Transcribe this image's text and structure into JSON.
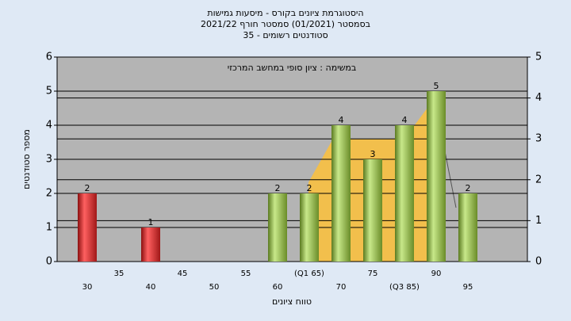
{
  "chart_data": {
    "type": "bar",
    "title": [
      "היסטוגרמת ציונים בקורס - מיסעות גמישות",
      "בסמסטר  (01/2021)  סמסטר חורף 2021/22",
      "סטודנטים רשומים - 35"
    ],
    "annotation": "במשימה : ציון סופי במחשב המרכזי",
    "ylabel": "מספר סטודנטים",
    "xlabel": "טווח ציונים",
    "categories": [
      "30",
      "35",
      "40",
      "45",
      "50",
      "55",
      "60",
      "(Q1 65)",
      "70",
      "75",
      "(Q3 85)",
      "90",
      "95"
    ],
    "values": [
      2,
      null,
      1,
      null,
      null,
      null,
      2,
      2,
      4,
      3,
      4,
      5,
      2
    ],
    "colors": [
      "#d42020",
      "#d42020",
      "#d42020",
      "#d42020",
      "#d42020",
      "#d42020",
      "#8cb43c",
      "#8cb43c",
      "#8cb43c",
      "#8cb43c",
      "#8cb43c",
      "#8cb43c",
      "#8cb43c"
    ],
    "ylim": [
      0,
      6
    ],
    "yticks": [
      0,
      1,
      2,
      3,
      4,
      5,
      6
    ],
    "y2lim": [
      0,
      5
    ],
    "y2ticks": [
      0,
      1,
      2,
      3,
      4,
      5
    ],
    "grid": true
  }
}
